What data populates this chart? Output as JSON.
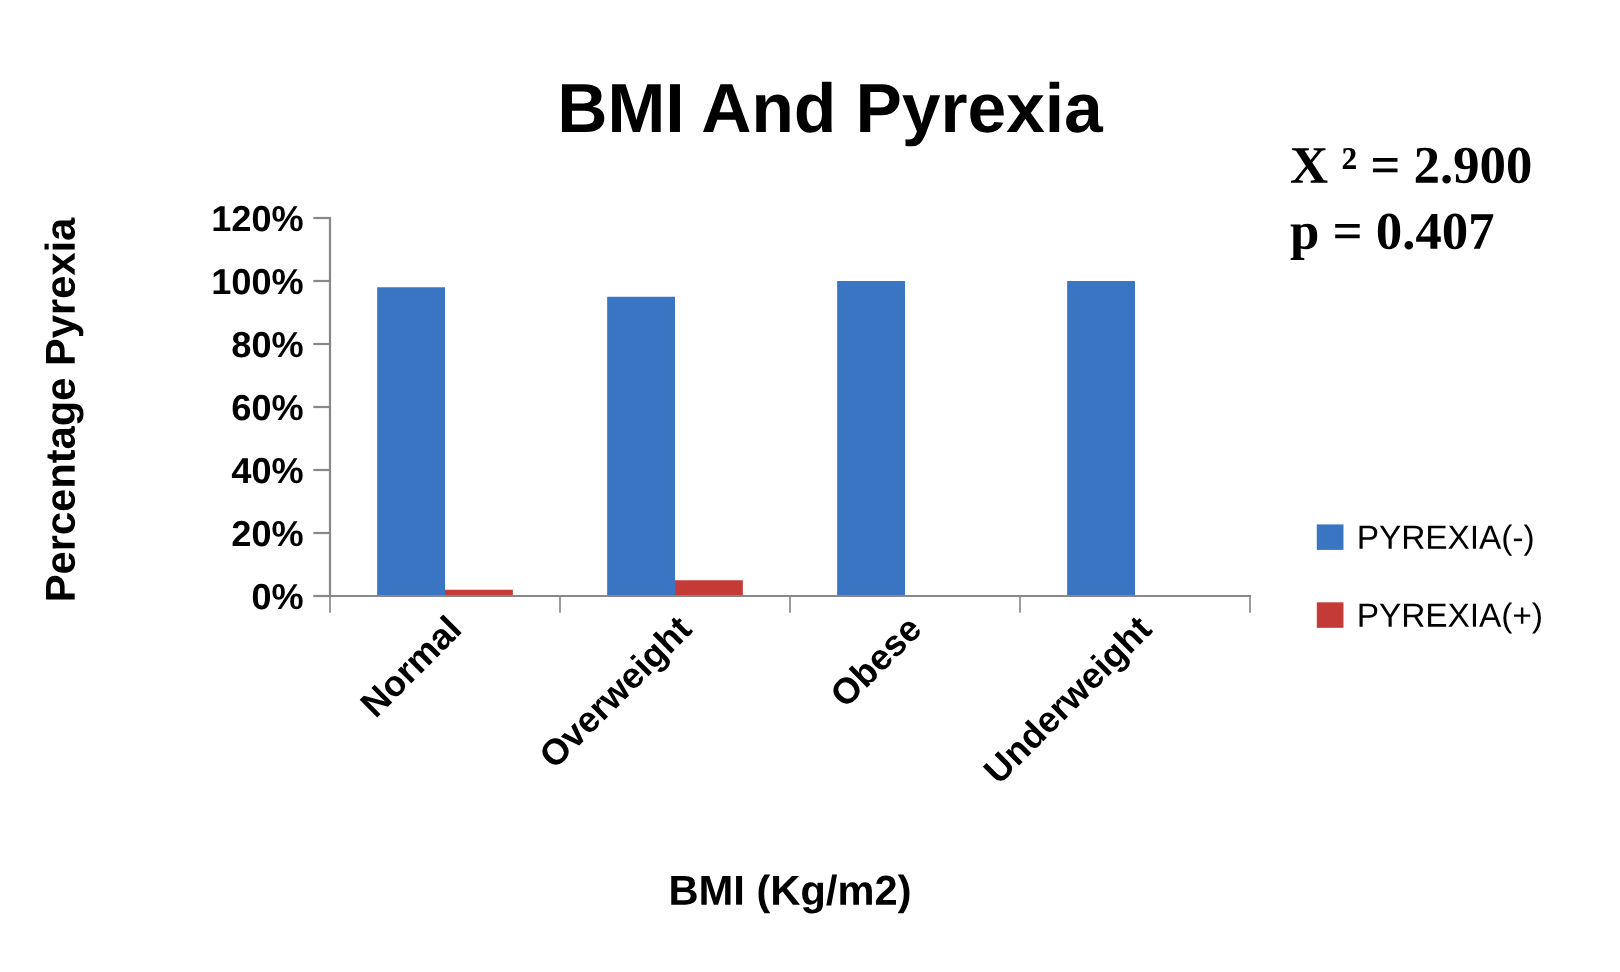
{
  "chart_data": {
    "type": "bar",
    "title": "BMI And Pyrexia",
    "xlabel": "BMI (Kg/m2)",
    "ylabel": "Percentage Pyrexia",
    "categories": [
      "Normal",
      "Overweight",
      "Obese",
      "Underweight"
    ],
    "series": [
      {
        "name": "PYREXIA(-)",
        "color": "#3a75c4",
        "values": [
          98,
          95,
          100,
          100
        ]
      },
      {
        "name": "PYREXIA(+)",
        "color": "#c43a36",
        "values": [
          2,
          5,
          0,
          0
        ]
      }
    ],
    "ylim": [
      0,
      120
    ],
    "yticks": [
      {
        "value": 0,
        "label": "0%"
      },
      {
        "value": 20,
        "label": "20%"
      },
      {
        "value": 40,
        "label": "40%"
      },
      {
        "value": 60,
        "label": "60%"
      },
      {
        "value": 80,
        "label": "80%"
      },
      {
        "value": 100,
        "label": "100%"
      },
      {
        "value": 120,
        "label": "120%"
      }
    ],
    "annotations": [
      "X ² = 2.900",
      "p = 0.407"
    ],
    "grid": false,
    "legend": "right"
  }
}
